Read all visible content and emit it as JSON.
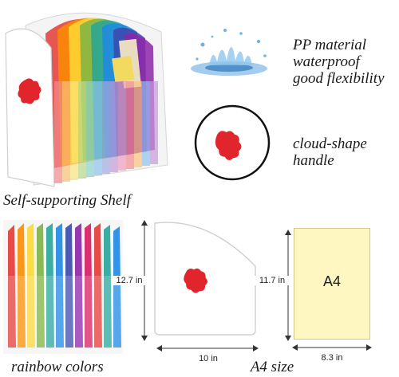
{
  "features": {
    "waterproof_lines": [
      "PP material",
      "waterproof",
      "good flexibility"
    ],
    "handle_lines": [
      "cloud-shape",
      "handle"
    ],
    "shelf_caption": "Self-supporting Shelf",
    "rainbow_caption": "rainbow colors",
    "a4_caption": "A4 size"
  },
  "dimensions": {
    "organizer_height": "12.7 in",
    "organizer_width": "10 in",
    "paper_height": "11.7 in",
    "paper_width": "8.3 in",
    "paper_label": "A4"
  },
  "colors": {
    "handle_red": "#e0262c",
    "paper_yellow": "#fff7c2",
    "water_blue": "#3f8fd0",
    "rainbow": [
      "#e53935",
      "#fb8c00",
      "#fdd835",
      "#7cb342",
      "#26a69a",
      "#1e88e5",
      "#3949ab",
      "#8e24aa",
      "#d81b60"
    ]
  },
  "icons": {
    "water_splash": "water-splash-icon",
    "handle_closeup": "cloud-handle-icon"
  }
}
